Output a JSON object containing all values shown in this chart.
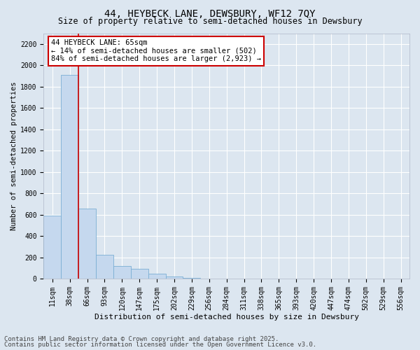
{
  "title1": "44, HEYBECK LANE, DEWSBURY, WF12 7QY",
  "title2": "Size of property relative to semi-detached houses in Dewsbury",
  "xlabel": "Distribution of semi-detached houses by size in Dewsbury",
  "ylabel": "Number of semi-detached properties",
  "categories": [
    "11sqm",
    "38sqm",
    "66sqm",
    "93sqm",
    "120sqm",
    "147sqm",
    "175sqm",
    "202sqm",
    "229sqm",
    "256sqm",
    "284sqm",
    "311sqm",
    "338sqm",
    "365sqm",
    "393sqm",
    "420sqm",
    "447sqm",
    "474sqm",
    "502sqm",
    "529sqm",
    "556sqm"
  ],
  "values": [
    590,
    1910,
    660,
    225,
    120,
    95,
    50,
    25,
    10,
    4,
    2,
    1,
    0,
    0,
    0,
    0,
    0,
    0,
    0,
    0,
    0
  ],
  "bar_color": "#c5d8ee",
  "bar_edge_color": "#7aafd4",
  "red_line_bar_index": 2,
  "highlight_line_color": "#cc0000",
  "annotation_text": "44 HEYBECK LANE: 65sqm\n← 14% of semi-detached houses are smaller (502)\n84% of semi-detached houses are larger (2,923) →",
  "annotation_box_facecolor": "#ffffff",
  "annotation_box_edgecolor": "#cc0000",
  "ylim": [
    0,
    2300
  ],
  "yticks": [
    0,
    200,
    400,
    600,
    800,
    1000,
    1200,
    1400,
    1600,
    1800,
    2000,
    2200
  ],
  "background_color": "#dce6f0",
  "plot_bg_color": "#dce6f0",
  "grid_color": "#ffffff",
  "footer1": "Contains HM Land Registry data © Crown copyright and database right 2025.",
  "footer2": "Contains public sector information licensed under the Open Government Licence v3.0.",
  "title1_fontsize": 10,
  "title2_fontsize": 8.5,
  "tick_fontsize": 7,
  "xlabel_fontsize": 8,
  "ylabel_fontsize": 7.5,
  "footer_fontsize": 6.5,
  "bar_width": 1.0
}
